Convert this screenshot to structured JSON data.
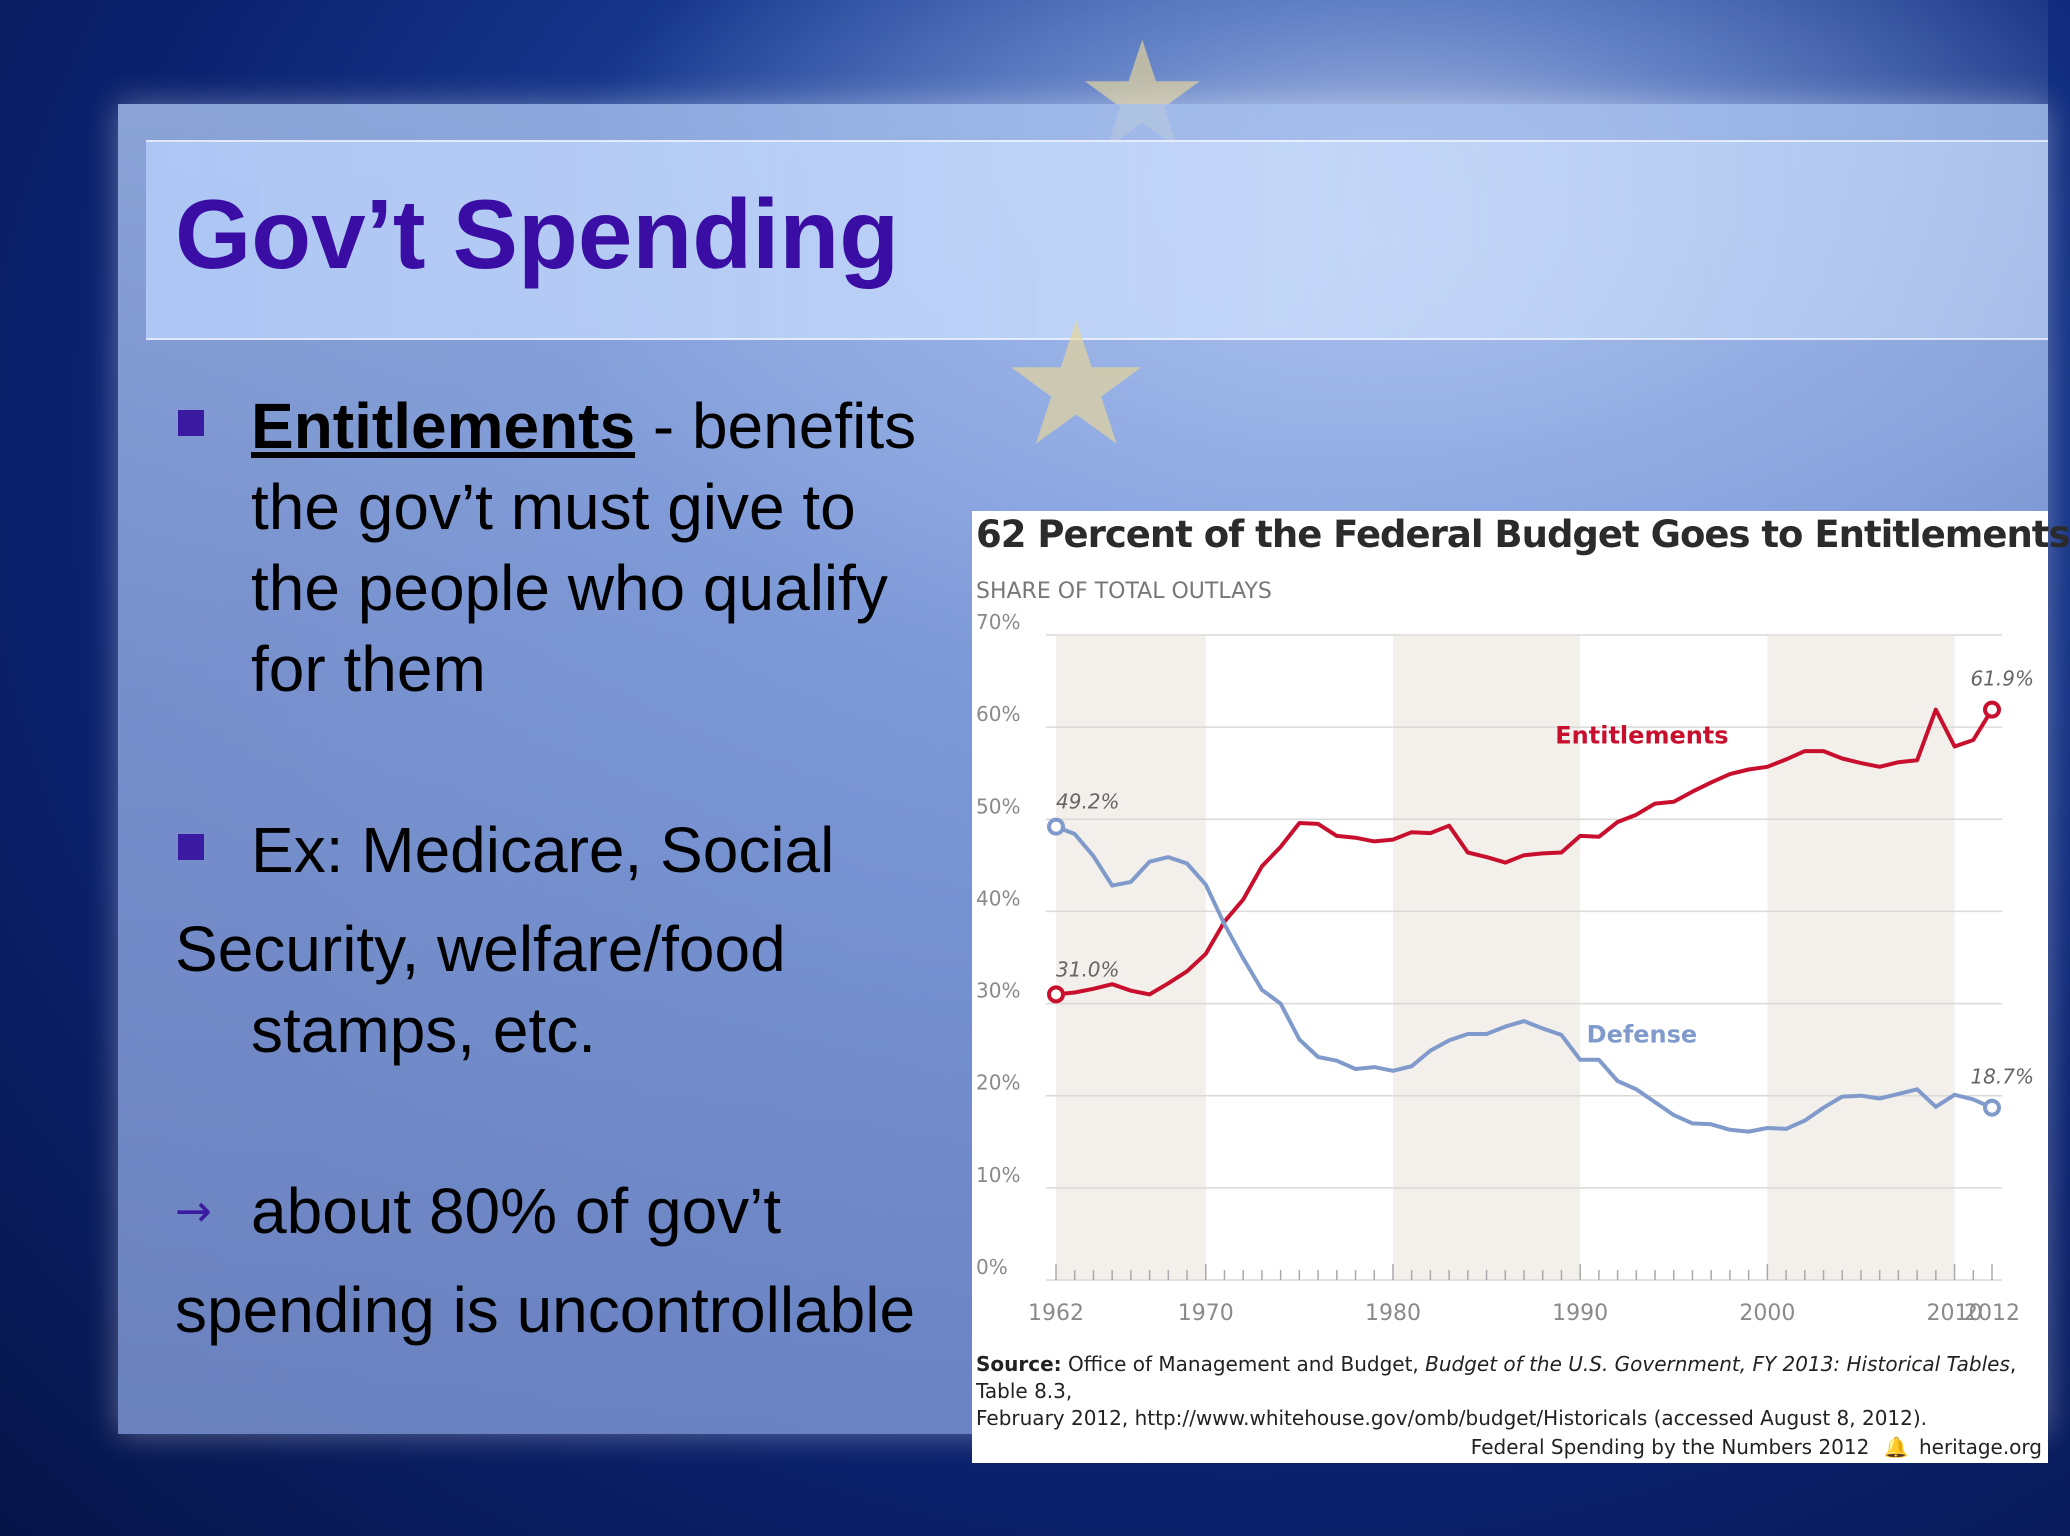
{
  "slide": {
    "title": "Gov’t Spending",
    "bullet1_term": "Entitlements",
    "bullet1_rest": " - benefits",
    "bullet1_line2": "the gov’t must give to",
    "bullet1_line3": "the people who qualify",
    "bullet1_line4": "for them",
    "bullet2_line1": "Ex: Medicare, Social",
    "bullet2_line2": "Security, welfare/food",
    "bullet2_line3": "stamps, etc.",
    "bullet3_line1": "about 80% of gov’t",
    "bullet3_line2": "spending is uncontrollable",
    "colors": {
      "title": "#3a0ea5",
      "bullet": "#3a1aa0"
    }
  },
  "chart_data": {
    "type": "line",
    "title": "62 Percent of the Federal Budget Goes to Entitlements",
    "subtitle": "SHARE OF TOTAL OUTLAYS",
    "ylim": [
      0,
      70
    ],
    "ytick_labels": [
      "0%",
      "10%",
      "20%",
      "30%",
      "40%",
      "50%",
      "60%",
      "70%"
    ],
    "xlim": [
      1962,
      2012
    ],
    "xtick_values": [
      1962,
      1970,
      1980,
      1990,
      2000,
      2010,
      2012
    ],
    "xtick_labels": [
      "1962",
      "1970",
      "1980",
      "1990",
      "2000",
      "2010",
      "2012"
    ],
    "x": [
      1962,
      1963,
      1964,
      1965,
      1966,
      1967,
      1968,
      1969,
      1970,
      1971,
      1972,
      1973,
      1974,
      1975,
      1976,
      1977,
      1978,
      1979,
      1980,
      1981,
      1982,
      1983,
      1984,
      1985,
      1986,
      1987,
      1988,
      1989,
      1990,
      1991,
      1992,
      1993,
      1994,
      1995,
      1996,
      1997,
      1998,
      1999,
      2000,
      2001,
      2002,
      2003,
      2004,
      2005,
      2006,
      2007,
      2008,
      2009,
      2010,
      2011,
      2012
    ],
    "series": [
      {
        "name": "Entitlements",
        "color": "#c8102e",
        "start_label": "31.0%",
        "end_label": "61.9%",
        "values": [
          31.0,
          31.2,
          31.6,
          32.1,
          31.4,
          31.0,
          32.2,
          33.5,
          35.4,
          38.9,
          41.3,
          44.9,
          47.0,
          49.6,
          49.5,
          48.2,
          48.0,
          47.6,
          47.8,
          48.6,
          48.5,
          49.3,
          46.4,
          45.9,
          45.3,
          46.1,
          46.3,
          46.4,
          48.2,
          48.1,
          49.7,
          50.5,
          51.7,
          51.9,
          53.0,
          54.0,
          54.9,
          55.4,
          55.7,
          56.5,
          57.4,
          57.4,
          56.6,
          56.1,
          55.7,
          56.2,
          56.4,
          61.9,
          57.9,
          58.6,
          61.9
        ]
      },
      {
        "name": "Defense",
        "color": "#7f9acb",
        "start_label": "49.2%",
        "end_label": "18.7%",
        "values": [
          49.2,
          48.4,
          46.0,
          42.8,
          43.2,
          45.4,
          45.9,
          45.2,
          42.9,
          38.6,
          34.9,
          31.5,
          30.0,
          26.1,
          24.2,
          23.8,
          22.9,
          23.1,
          22.7,
          23.2,
          24.9,
          26.0,
          26.7,
          26.7,
          27.5,
          28.1,
          27.3,
          26.6,
          23.9,
          23.9,
          21.6,
          20.7,
          19.3,
          17.9,
          17.0,
          16.9,
          16.3,
          16.1,
          16.5,
          16.4,
          17.3,
          18.7,
          19.9,
          20.0,
          19.7,
          20.2,
          20.7,
          18.8,
          20.1,
          19.6,
          18.7
        ]
      }
    ],
    "source_label": "Source:",
    "source_text_a": " Office of Management and Budget, ",
    "source_italic": "Budget of the U.S. Government, FY 2013: Historical Tables",
    "source_text_b": ", Table 8.3,",
    "source_line2": "February 2012, http://www.whitehouse.gov/omb/budget/Historicals (accessed August 8, 2012).",
    "footer_left": "Federal Spending by the Numbers 2012",
    "footer_icon": "bell-icon",
    "footer_right": "heritage.org",
    "grid": true
  }
}
